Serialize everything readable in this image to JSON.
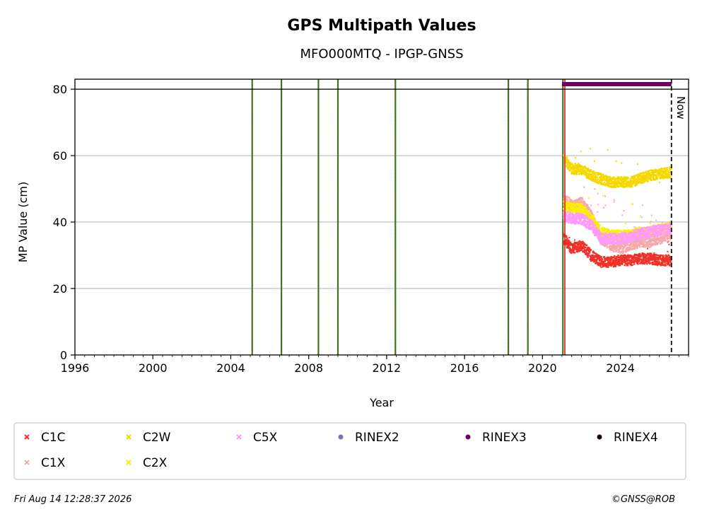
{
  "chart_data": {
    "type": "scatter",
    "title": "GPS Multipath Values",
    "subtitle": "MFO000MTQ - IPGP-GNSS",
    "xlabel": "Year",
    "ylabel": "MP Value (cm)",
    "xlim": [
      1996,
      2027.5
    ],
    "ylim": [
      0,
      83
    ],
    "xticks": [
      1996,
      2000,
      2004,
      2008,
      2012,
      2016,
      2020,
      2024
    ],
    "yticks": [
      0,
      20,
      40,
      60,
      80
    ],
    "grid": "y",
    "limit_line": 80,
    "events": [
      2005.1,
      2006.6,
      2008.5,
      2009.5,
      2012.45,
      2018.25,
      2019.25,
      2021.05
    ],
    "rinex_start": 2021.15,
    "now": 2026.62,
    "now_label": "Now",
    "rinex_bar": {
      "name": "RINEX3",
      "start": 2021.0,
      "end": 2026.62,
      "y": 81.5,
      "color": "#6a0060"
    },
    "series": [
      {
        "name": "C1C",
        "marker": "x",
        "color": "#f03028",
        "x": [
          2021.1,
          2021.5,
          2022.0,
          2022.5,
          2023.0,
          2023.5,
          2024.0,
          2024.5,
          2025.0,
          2025.5,
          2026.0,
          2026.6
        ],
        "y": [
          35,
          32,
          33,
          30,
          28,
          28,
          28.5,
          28.5,
          29,
          29,
          28.5,
          28.5
        ]
      },
      {
        "name": "C1X",
        "marker": "x",
        "color": "#f4aaaa",
        "x": [
          2021.1,
          2021.5,
          2022.0,
          2022.5,
          2023.0,
          2023.5,
          2024.0,
          2024.5,
          2025.0,
          2025.5,
          2026.0,
          2026.6
        ],
        "y": [
          47,
          45,
          46,
          42,
          35,
          33,
          32,
          33,
          34,
          34,
          35,
          36
        ]
      },
      {
        "name": "C2W",
        "marker": "x",
        "color": "#f5d800",
        "x": [
          2021.1,
          2021.5,
          2022.0,
          2022.5,
          2023.0,
          2023.5,
          2024.0,
          2024.5,
          2025.0,
          2025.5,
          2026.0,
          2026.6
        ],
        "y": [
          59,
          56,
          56,
          54,
          53,
          52,
          52,
          52,
          53,
          54,
          54.5,
          55
        ]
      },
      {
        "name": "C2X",
        "marker": "x",
        "color": "#ffee00",
        "x": [
          2021.1,
          2021.5,
          2022.0,
          2022.5,
          2023.0,
          2023.5,
          2024.0,
          2024.5,
          2025.0,
          2025.5,
          2026.0,
          2026.6
        ],
        "y": [
          45,
          44,
          44,
          41,
          37,
          36,
          36,
          36,
          37,
          37,
          38,
          38
        ]
      },
      {
        "name": "C5X",
        "marker": "x",
        "color": "#ff99ff",
        "x": [
          2021.1,
          2021.5,
          2022.0,
          2022.5,
          2023.0,
          2023.5,
          2024.0,
          2024.5,
          2025.0,
          2025.5,
          2026.0,
          2026.6
        ],
        "y": [
          42,
          41,
          41,
          39,
          35,
          35,
          35,
          35.5,
          36.5,
          37,
          37.5,
          38
        ]
      }
    ],
    "legend": {
      "placement": "bottom",
      "entries": [
        {
          "name": "C1C",
          "marker": "x",
          "color": "#f03028"
        },
        {
          "name": "C2W",
          "marker": "x",
          "color": "#f5d800"
        },
        {
          "name": "C5X",
          "marker": "x",
          "color": "#ff99ff"
        },
        {
          "name": "RINEX2",
          "marker": "dot",
          "color": "#8070b8"
        },
        {
          "name": "RINEX3",
          "marker": "dot",
          "color": "#6a0060"
        },
        {
          "name": "RINEX4",
          "marker": "dot",
          "color": "#1a0018"
        },
        {
          "name": "C1X",
          "marker": "x",
          "color": "#f4aaaa"
        },
        {
          "name": "C2X",
          "marker": "x",
          "color": "#ffee00"
        }
      ]
    }
  },
  "footer": {
    "timestamp": "Fri Aug 14 12:28:37 2026",
    "credit": "©GNSS@ROB"
  }
}
